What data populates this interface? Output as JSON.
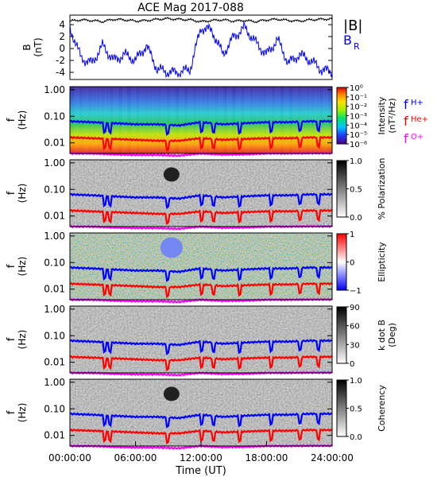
{
  "title": "ACE Mag 2017-088",
  "legend": {
    "bmag": "|B|",
    "br": "B",
    "br_sub": "R",
    "fh_main": "f",
    "fh_sub": "H+",
    "fhe_main": "f",
    "fhe_sub": "He+",
    "fo_main": "f",
    "fo_sub": "O+"
  },
  "colors": {
    "bmag": "#000000",
    "br": "#0000ff",
    "fh": "#0000ff",
    "fhe": "#ff0000",
    "fo": "#ff00ff"
  },
  "chart_data": [
    {
      "type": "line",
      "panel": "magnetic-field",
      "title": "ACE Mag 2017-088",
      "ylabel": "B",
      "yunit": "(nT)",
      "ylim": [
        -5.2,
        5.6
      ],
      "yticks": [
        4,
        2,
        0,
        -2,
        -4
      ],
      "xlim": [
        0,
        24
      ],
      "series": [
        {
          "name": "|B|",
          "x": [
            0,
            1,
            2,
            3,
            4,
            5,
            6,
            7,
            8,
            9,
            10,
            11,
            12,
            13,
            14,
            15,
            16,
            17,
            18,
            19,
            20,
            21,
            22,
            23,
            24
          ],
          "values": [
            4.6,
            4.8,
            4.7,
            4.5,
            4.9,
            4.8,
            4.6,
            4.7,
            4.9,
            5.0,
            4.9,
            4.8,
            4.5,
            4.7,
            4.8,
            4.6,
            4.7,
            4.5,
            4.8,
            4.9,
            4.7,
            4.6,
            4.8,
            4.9,
            5.0
          ]
        },
        {
          "name": "B R",
          "x": [
            0,
            1,
            2,
            3,
            4,
            5,
            6,
            7,
            8,
            9,
            10,
            11,
            12,
            13,
            14,
            15,
            16,
            17,
            18,
            19,
            20,
            21,
            22,
            23,
            24
          ],
          "values": [
            3.5,
            -1.5,
            -2.5,
            0.5,
            -2.0,
            -1.0,
            -2.0,
            0.5,
            -3.5,
            -4.0,
            -4.0,
            -3.5,
            3.5,
            3.0,
            -1.0,
            2.0,
            3.5,
            1.0,
            -1.0,
            1.5,
            -2.5,
            -1.0,
            -2.0,
            -3.5,
            -4.0
          ]
        }
      ]
    },
    {
      "type": "heatmap",
      "panel": "intensity",
      "ylabel": "f",
      "yunit": "(Hz)",
      "yscale": "log",
      "ylim": [
        0.004,
        1.3
      ],
      "yticks": [
        "1.00",
        "0.10",
        "0.01"
      ],
      "xlim": [
        0,
        24
      ],
      "colorbar": {
        "label": "Intensity",
        "unit": "(nT²/Hz)",
        "scale": "log",
        "ticks": [
          "10⁰",
          "10⁻¹",
          "10⁻²",
          "10⁻³",
          "10⁻⁴",
          "10⁻⁵",
          "10⁻⁶"
        ]
      }
    },
    {
      "type": "heatmap",
      "panel": "polarization",
      "ylabel": "f",
      "yunit": "(Hz)",
      "yscale": "log",
      "ylim": [
        0.004,
        1.3
      ],
      "yticks": [
        "1.00",
        "0.10",
        "0.01"
      ],
      "xlim": [
        0,
        24
      ],
      "colorbar": {
        "label": "% Polarization",
        "unit": "",
        "ticks": [
          "1.0",
          "0.5",
          "0.0"
        ]
      }
    },
    {
      "type": "heatmap",
      "panel": "ellipticity",
      "ylabel": "f",
      "yunit": "(Hz)",
      "yscale": "log",
      "ylim": [
        0.004,
        1.3
      ],
      "yticks": [
        "1.00",
        "0.10",
        "0.01"
      ],
      "xlim": [
        0,
        24
      ],
      "colorbar": {
        "label": "Ellipticity",
        "unit": "",
        "ticks": [
          "1",
          "0",
          "−1"
        ]
      }
    },
    {
      "type": "heatmap",
      "panel": "k-dot-b",
      "ylabel": "f",
      "yunit": "(Hz)",
      "yscale": "log",
      "ylim": [
        0.004,
        1.3
      ],
      "yticks": [
        "1.00",
        "0.10",
        "0.01"
      ],
      "xlim": [
        0,
        24
      ],
      "colorbar": {
        "label": "k dot B",
        "unit": "(Deg)",
        "ticks": [
          "90",
          "60",
          "30",
          "0"
        ]
      }
    },
    {
      "type": "heatmap",
      "panel": "coherency",
      "ylabel": "f",
      "yunit": "(Hz)",
      "yscale": "log",
      "ylim": [
        0.004,
        1.3
      ],
      "yticks": [
        "1.00",
        "0.10",
        "0.01"
      ],
      "xlim": [
        0,
        24
      ],
      "xlabel": "Time (UT)",
      "xticks": [
        "00:00:00",
        "06:00:00",
        "12:00:00",
        "18:00:00",
        "24:00:00"
      ],
      "colorbar": {
        "label": "Coherency",
        "unit": "",
        "ticks": [
          "1.0",
          "0.5",
          "0.0"
        ]
      }
    }
  ],
  "gyrofrequency_lines": {
    "x": [
      0,
      2,
      4,
      6,
      8,
      10,
      12,
      14,
      16,
      18,
      20,
      22,
      24
    ],
    "fh": [
      0.065,
      0.06,
      0.055,
      0.05,
      0.05,
      0.045,
      0.06,
      0.05,
      0.055,
      0.06,
      0.06,
      0.065,
      0.065
    ],
    "fhe": [
      0.016,
      0.015,
      0.014,
      0.013,
      0.012,
      0.012,
      0.015,
      0.013,
      0.014,
      0.015,
      0.015,
      0.016,
      0.016
    ],
    "fo": [
      0.004,
      0.004,
      0.0037,
      0.0035,
      0.0035,
      0.0033,
      0.004,
      0.0036,
      0.0037,
      0.004,
      0.004,
      0.0041,
      0.0041
    ]
  }
}
